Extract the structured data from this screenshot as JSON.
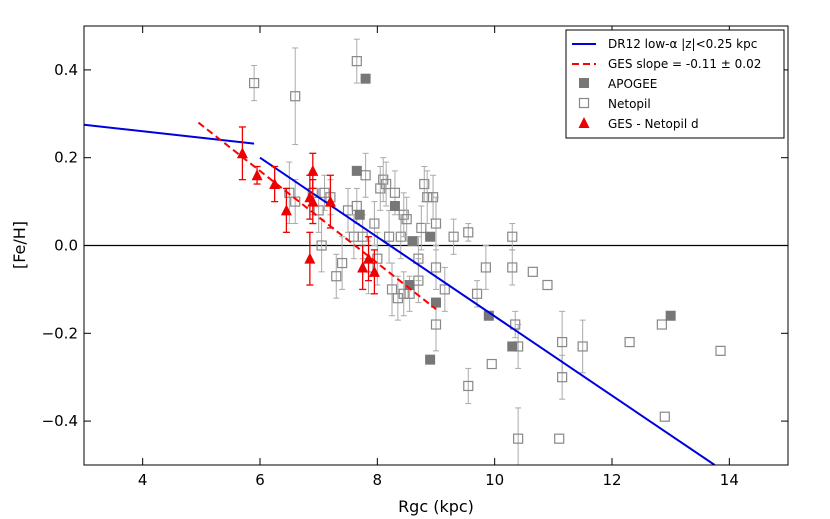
{
  "chart_data": {
    "type": "scatter",
    "xlabel": "Rgc (kpc)",
    "ylabel": "[Fe/H]",
    "xlim": [
      3,
      15
    ],
    "ylim": [
      -0.5,
      0.5
    ],
    "xticks": [
      4,
      6,
      8,
      10,
      12,
      14
    ],
    "yticks": [
      -0.4,
      -0.2,
      0.0,
      0.2,
      0.4
    ],
    "xtick_labels": [
      "4",
      "6",
      "8",
      "10",
      "12",
      "14"
    ],
    "ytick_labels": [
      "−0.4",
      "−0.2",
      "0.0",
      "0.2",
      "0.4"
    ],
    "zero_line": 0.0,
    "lines": [
      {
        "name": "DR12 low-α |z|<0.25 kpc",
        "color": "#0000dd",
        "style": "solid",
        "points": [
          [
            3.0,
            0.275
          ],
          [
            5.9,
            0.232
          ]
        ]
      },
      {
        "name": "DR12 low-α |z|<0.25 kpc (inner segment)",
        "color": "#0000dd",
        "style": "solid",
        "points": [
          [
            6.0,
            0.2
          ],
          [
            13.75,
            -0.5
          ]
        ]
      },
      {
        "name": "GES slope = -0.11 ± 0.02",
        "color": "#ff0000",
        "style": "dashed",
        "points": [
          [
            4.95,
            0.28
          ],
          [
            9.0,
            -0.145
          ]
        ]
      }
    ],
    "series": [
      {
        "name": "APOGEE",
        "marker": "filled-square",
        "color": "#777777",
        "points": [
          [
            7.8,
            0.38
          ],
          [
            7.65,
            0.17
          ],
          [
            7.7,
            0.07
          ],
          [
            8.3,
            0.09
          ],
          [
            8.9,
            0.02
          ],
          [
            8.6,
            0.01
          ],
          [
            8.55,
            -0.09
          ],
          [
            9.0,
            -0.13
          ],
          [
            9.9,
            -0.16
          ],
          [
            10.3,
            -0.23
          ],
          [
            8.9,
            -0.26
          ],
          [
            13.0,
            -0.16
          ]
        ]
      },
      {
        "name": "Netopil",
        "marker": "open-square",
        "color": "#888888",
        "points": [
          {
            "x": 5.9,
            "y": 0.37,
            "err": 0.04
          },
          {
            "x": 6.6,
            "y": 0.34,
            "err": 0.11
          },
          {
            "x": 7.65,
            "y": 0.42,
            "err": 0.05
          },
          {
            "x": 6.5,
            "y": 0.12,
            "err": 0.07
          },
          {
            "x": 6.6,
            "y": 0.1,
            "err": 0.05
          },
          {
            "x": 6.9,
            "y": 0.12,
            "err": 0.05
          },
          {
            "x": 7.0,
            "y": 0.08,
            "err": 0.05
          },
          {
            "x": 7.1,
            "y": 0.12,
            "err": 0.04
          },
          {
            "x": 7.2,
            "y": 0.11,
            "err": 0.04
          },
          {
            "x": 7.05,
            "y": 0.0,
            "err": 0.06
          },
          {
            "x": 7.3,
            "y": -0.07,
            "err": 0.05
          },
          {
            "x": 7.4,
            "y": -0.04,
            "err": 0.06
          },
          {
            "x": 7.5,
            "y": 0.08,
            "err": 0.05
          },
          {
            "x": 7.6,
            "y": 0.02,
            "err": 0.05
          },
          {
            "x": 7.65,
            "y": 0.09,
            "err": 0.04
          },
          {
            "x": 7.75,
            "y": 0.02,
            "err": 0.05
          },
          {
            "x": 7.8,
            "y": 0.16,
            "err": 0.05
          },
          {
            "x": 7.85,
            "y": -0.05,
            "err": 0.06
          },
          {
            "x": 7.95,
            "y": 0.05,
            "err": 0.05
          },
          {
            "x": 8.0,
            "y": -0.03,
            "err": 0.06
          },
          {
            "x": 8.05,
            "y": 0.13,
            "err": 0.05
          },
          {
            "x": 8.1,
            "y": 0.15,
            "err": 0.05
          },
          {
            "x": 8.15,
            "y": 0.14,
            "err": 0.05
          },
          {
            "x": 8.2,
            "y": 0.02,
            "err": 0.06
          },
          {
            "x": 8.25,
            "y": -0.1,
            "err": 0.06
          },
          {
            "x": 8.3,
            "y": 0.12,
            "err": 0.05
          },
          {
            "x": 8.4,
            "y": 0.02,
            "err": 0.05
          },
          {
            "x": 8.45,
            "y": 0.07,
            "err": 0.05
          },
          {
            "x": 8.5,
            "y": 0.06,
            "err": 0.05
          },
          {
            "x": 8.35,
            "y": -0.12,
            "err": 0.05
          },
          {
            "x": 8.45,
            "y": -0.11,
            "err": 0.05
          },
          {
            "x": 8.55,
            "y": -0.11,
            "err": 0.04
          },
          {
            "x": 8.7,
            "y": -0.08,
            "err": 0.05
          },
          {
            "x": 8.7,
            "y": -0.03,
            "err": 0.05
          },
          {
            "x": 8.75,
            "y": 0.04,
            "err": 0.05
          },
          {
            "x": 8.8,
            "y": 0.14,
            "err": 0.04
          },
          {
            "x": 8.85,
            "y": 0.11,
            "err": 0.06
          },
          {
            "x": 8.95,
            "y": 0.11,
            "err": 0.05
          },
          {
            "x": 9.0,
            "y": 0.05,
            "err": 0.06
          },
          {
            "x": 9.0,
            "y": -0.18,
            "err": 0.06
          },
          {
            "x": 9.0,
            "y": -0.05,
            "err": 0.05
          },
          {
            "x": 9.15,
            "y": -0.1,
            "err": 0.05
          },
          {
            "x": 9.3,
            "y": 0.02,
            "err": 0.04
          },
          {
            "x": 9.55,
            "y": 0.03,
            "err": 0.02
          },
          {
            "x": 9.85,
            "y": -0.05,
            "err": 0.05
          },
          {
            "x": 9.55,
            "y": -0.32,
            "err": 0.04
          },
          {
            "x": 9.95,
            "y": -0.27,
            "err": 0.0
          },
          {
            "x": 9.7,
            "y": -0.11,
            "err": 0.03
          },
          {
            "x": 10.3,
            "y": 0.02,
            "err": 0.03
          },
          {
            "x": 10.3,
            "y": -0.05,
            "err": 0.04
          },
          {
            "x": 10.4,
            "y": -0.23,
            "err": 0.05
          },
          {
            "x": 10.35,
            "y": -0.18,
            "err": 0.03
          },
          {
            "x": 10.4,
            "y": -0.44,
            "err": 0.07
          },
          {
            "x": 10.65,
            "y": -0.06,
            "err": 0.0
          },
          {
            "x": 10.9,
            "y": -0.09,
            "err": 0.0
          },
          {
            "x": 11.1,
            "y": -0.44,
            "err": 0.0
          },
          {
            "x": 11.15,
            "y": -0.22,
            "err": 0.07
          },
          {
            "x": 11.15,
            "y": -0.3,
            "err": 0.05
          },
          {
            "x": 11.5,
            "y": -0.23,
            "err": 0.06
          },
          {
            "x": 12.3,
            "y": -0.22,
            "err": 0.0
          },
          {
            "x": 12.85,
            "y": -0.18,
            "err": 0.0
          },
          {
            "x": 12.9,
            "y": -0.39,
            "err": 0.0
          },
          {
            "x": 13.85,
            "y": -0.24,
            "err": 0.0
          }
        ]
      },
      {
        "name": "GES - Netopil d",
        "marker": "filled-triangle",
        "color": "#ee0000",
        "points": [
          {
            "x": 5.7,
            "y": 0.21,
            "err": 0.06
          },
          {
            "x": 5.95,
            "y": 0.16,
            "err": 0.02
          },
          {
            "x": 6.25,
            "y": 0.14,
            "err": 0.04
          },
          {
            "x": 6.45,
            "y": 0.08,
            "err": 0.05
          },
          {
            "x": 6.85,
            "y": 0.11,
            "err": 0.05
          },
          {
            "x": 6.9,
            "y": 0.1,
            "err": 0.05
          },
          {
            "x": 6.9,
            "y": 0.17,
            "err": 0.04
          },
          {
            "x": 6.85,
            "y": -0.03,
            "err": 0.06
          },
          {
            "x": 7.2,
            "y": 0.1,
            "err": 0.06
          },
          {
            "x": 7.75,
            "y": -0.05,
            "err": 0.05
          },
          {
            "x": 7.85,
            "y": -0.03,
            "err": 0.05
          },
          {
            "x": 7.95,
            "y": -0.06,
            "err": 0.05
          }
        ]
      }
    ],
    "legend": {
      "position": "top-right",
      "entries": [
        {
          "label": "DR12 low-α |z|<0.25 kpc",
          "symbol": "solid-line",
          "color": "#0000dd"
        },
        {
          "label": "GES slope = -0.11 ± 0.02",
          "symbol": "dashed-line",
          "color": "#ff0000"
        },
        {
          "label": "APOGEE",
          "symbol": "filled-square",
          "color": "#777777"
        },
        {
          "label": "Netopil",
          "symbol": "open-square",
          "color": "#888888"
        },
        {
          "label": "GES - Netopil d",
          "symbol": "filled-triangle",
          "color": "#ee0000"
        }
      ]
    }
  }
}
